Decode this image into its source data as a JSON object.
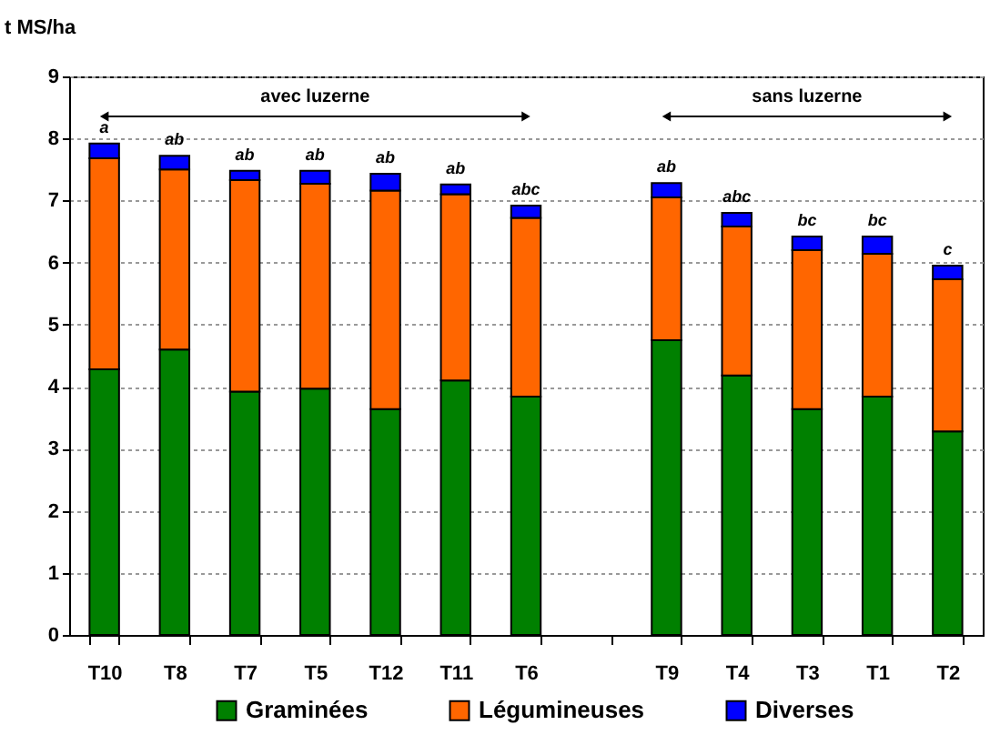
{
  "chart_data": {
    "type": "bar",
    "stacked": true,
    "ylabel": "t MS/ha",
    "categories": [
      "T10",
      "T8",
      "T7",
      "T5",
      "T12",
      "T11",
      "T6",
      null,
      "T9",
      "T4",
      "T3",
      "T1",
      "T2"
    ],
    "series": [
      {
        "name": "Graminées",
        "color": "#008000",
        "values": [
          4.28,
          4.6,
          3.92,
          3.97,
          3.64,
          4.1,
          3.84,
          null,
          4.75,
          4.18,
          3.64,
          3.84,
          3.28
        ]
      },
      {
        "name": "Légumineuses",
        "color": "#ff6600",
        "values": [
          3.4,
          2.9,
          3.41,
          3.3,
          3.52,
          3.0,
          2.88,
          null,
          2.3,
          2.4,
          2.56,
          2.3,
          2.45
        ]
      },
      {
        "name": "Diverses",
        "color": "#0000ff",
        "values": [
          0.24,
          0.22,
          0.15,
          0.21,
          0.27,
          0.16,
          0.2,
          null,
          0.23,
          0.22,
          0.22,
          0.28,
          0.22
        ]
      }
    ],
    "ylim": [
      0,
      9
    ],
    "yticks": [
      0,
      1,
      2,
      3,
      4,
      5,
      6,
      7,
      8,
      9
    ],
    "grid": "y",
    "legend": "bottom",
    "annotations": [
      "avec luzerne",
      "sans luzerne",
      {
        "text": "a",
        "x": "T10",
        "y": 7.92
      },
      {
        "text": "ab",
        "x": "T8",
        "y": 7.72
      },
      {
        "text": "ab",
        "x": "T7",
        "y": 7.48
      },
      {
        "text": "ab",
        "x": "T5",
        "y": 7.48
      },
      {
        "text": "ab",
        "x": "T12",
        "y": 7.43
      },
      {
        "text": "ab",
        "x": "T11",
        "y": 7.26
      },
      {
        "text": "abc",
        "x": "T6",
        "y": 6.92
      },
      {
        "text": "ab",
        "x": "T9",
        "y": 7.28
      },
      {
        "text": "abc",
        "x": "T4",
        "y": 6.8
      },
      {
        "text": "bc",
        "x": "T3",
        "y": 6.42
      },
      {
        "text": "bc",
        "x": "T1",
        "y": 6.42
      },
      {
        "text": "c",
        "x": "T2",
        "y": 5.95
      }
    ]
  }
}
